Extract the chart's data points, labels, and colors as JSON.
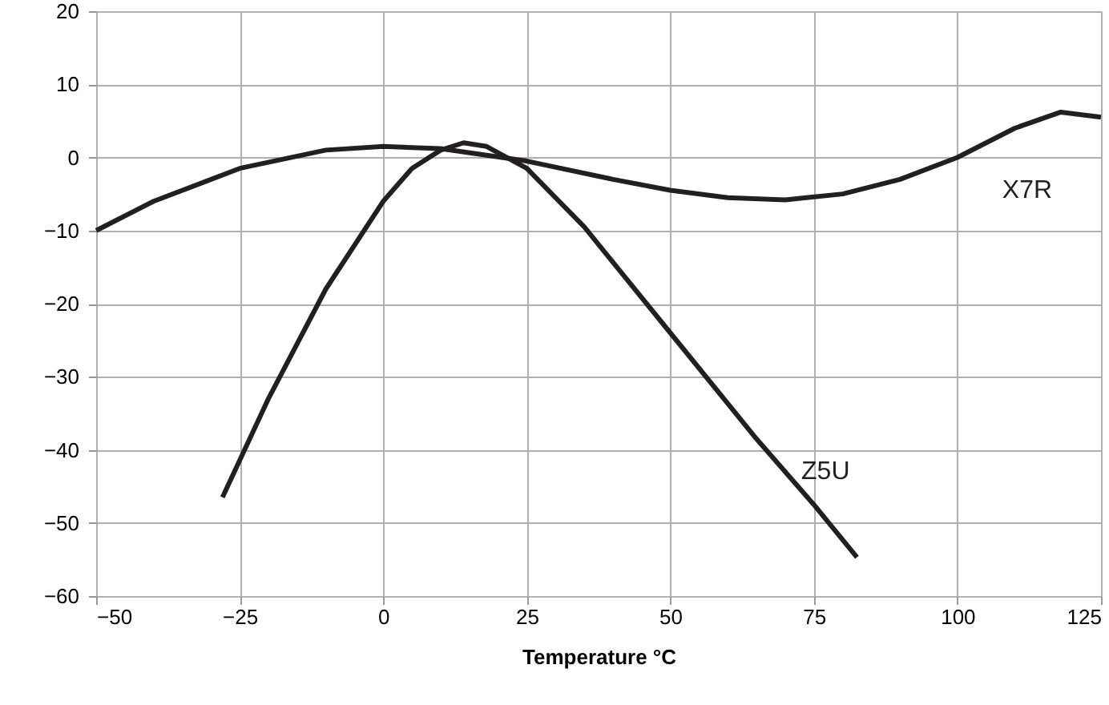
{
  "chart_data": {
    "type": "line",
    "xlabel": "Temperature °C",
    "xlim": [
      -50,
      125
    ],
    "xticks": [
      -50,
      -25,
      0,
      25,
      50,
      75,
      100,
      125
    ],
    "ylim": [
      -60,
      20
    ],
    "yticks": [
      -60,
      -50,
      -40,
      -30,
      -20,
      -10,
      0,
      10,
      20
    ],
    "grid": true,
    "marker": "none",
    "line_style": "solid",
    "series": [
      {
        "name": "X7R",
        "color": "#231f20",
        "x": [
          -50,
          -40,
          -25,
          -10,
          0,
          10,
          25,
          40,
          50,
          60,
          70,
          80,
          90,
          100,
          110,
          118,
          125
        ],
        "values": [
          -10,
          -6,
          -1.5,
          1,
          1.5,
          1.2,
          -0.5,
          -3,
          -4.5,
          -5.5,
          -5.8,
          -5,
          -3,
          0,
          4,
          6.2,
          5.5
        ]
      },
      {
        "name": "Z5U",
        "color": "#231f20",
        "x": [
          -28,
          -20,
          -10,
          0,
          5,
          10,
          14,
          18,
          25,
          35,
          50,
          65,
          75,
          82.5
        ],
        "values": [
          -46.5,
          -33,
          -18,
          -6,
          -1.5,
          1,
          2,
          1.5,
          -1.5,
          -9.5,
          -24,
          -38.5,
          -47.5,
          -54.7
        ]
      }
    ]
  }
}
